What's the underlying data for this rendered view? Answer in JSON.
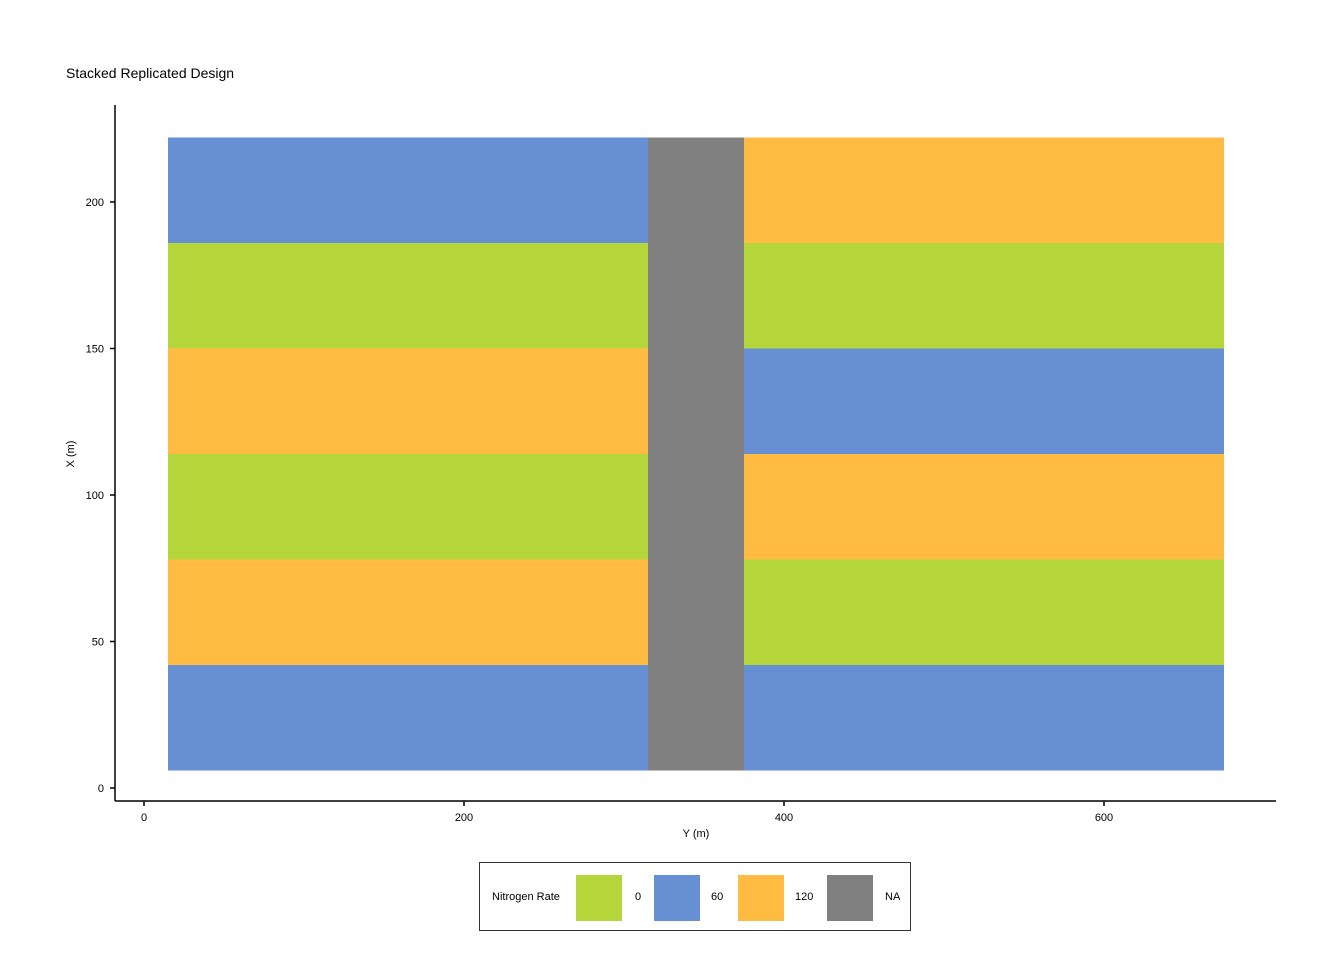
{
  "chart_data": {
    "type": "heatmap",
    "title": "Stacked Replicated Design",
    "xlabel": "Y (m)",
    "ylabel": "X (m)",
    "xlim": [
      -18,
      700
    ],
    "ylim": [
      -5,
      233
    ],
    "xticks": [
      0,
      200,
      400,
      600
    ],
    "yticks": [
      0,
      50,
      100,
      150,
      200
    ],
    "legend": {
      "title": "Nitrogen Rate",
      "placement": "bottom",
      "entries": [
        {
          "label": "0",
          "color": "#b5d63a"
        },
        {
          "label": "60",
          "color": "#6690d3"
        },
        {
          "label": "120",
          "color": "#ffbb42"
        },
        {
          "label": "NA",
          "color": "#808080"
        }
      ]
    },
    "cells": [
      {
        "y_m": [
          15,
          315
        ],
        "x_m": [
          6,
          42
        ],
        "rate": "60"
      },
      {
        "y_m": [
          15,
          315
        ],
        "x_m": [
          42,
          78
        ],
        "rate": "120"
      },
      {
        "y_m": [
          15,
          315
        ],
        "x_m": [
          78,
          114
        ],
        "rate": "0"
      },
      {
        "y_m": [
          15,
          315
        ],
        "x_m": [
          114,
          150
        ],
        "rate": "120"
      },
      {
        "y_m": [
          15,
          315
        ],
        "x_m": [
          150,
          186
        ],
        "rate": "0"
      },
      {
        "y_m": [
          15,
          315
        ],
        "x_m": [
          186,
          222
        ],
        "rate": "60"
      },
      {
        "y_m": [
          315,
          375
        ],
        "x_m": [
          6,
          222
        ],
        "rate": "NA"
      },
      {
        "y_m": [
          375,
          675
        ],
        "x_m": [
          6,
          42
        ],
        "rate": "60"
      },
      {
        "y_m": [
          375,
          675
        ],
        "x_m": [
          42,
          78
        ],
        "rate": "0"
      },
      {
        "y_m": [
          375,
          675
        ],
        "x_m": [
          78,
          114
        ],
        "rate": "120"
      },
      {
        "y_m": [
          375,
          675
        ],
        "x_m": [
          114,
          150
        ],
        "rate": "60"
      },
      {
        "y_m": [
          375,
          675
        ],
        "x_m": [
          150,
          186
        ],
        "rate": "0"
      },
      {
        "y_m": [
          375,
          675
        ],
        "x_m": [
          186,
          222
        ],
        "rate": "120"
      }
    ]
  }
}
